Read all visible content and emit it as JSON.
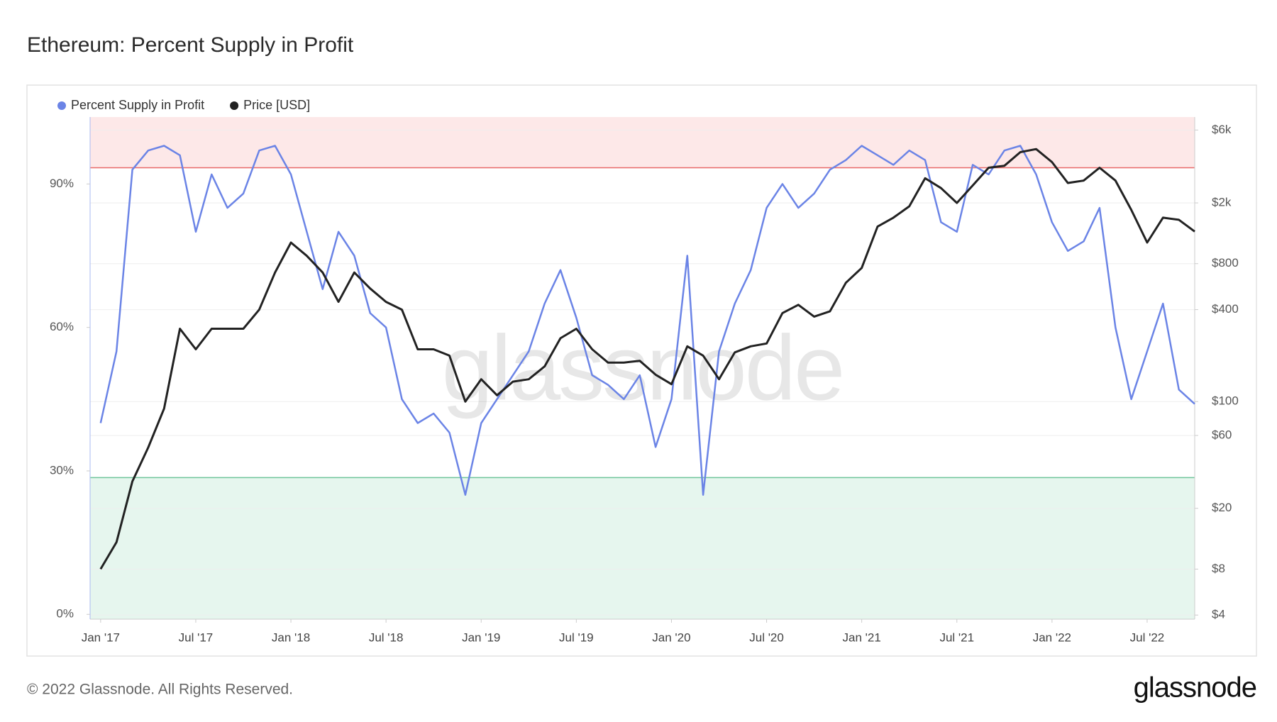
{
  "chart_data": {
    "type": "line",
    "title": "Ethereum: Percent Supply in Profit",
    "watermark": "glassnode",
    "footer": "© 2022 Glassnode. All Rights Reserved.",
    "logo": "glassnode",
    "x": [
      "2017-01",
      "2017-02",
      "2017-03",
      "2017-04",
      "2017-05",
      "2017-06",
      "2017-07",
      "2017-08",
      "2017-09",
      "2017-10",
      "2017-11",
      "2017-12",
      "2018-01",
      "2018-02",
      "2018-03",
      "2018-04",
      "2018-05",
      "2018-06",
      "2018-07",
      "2018-08",
      "2018-09",
      "2018-10",
      "2018-11",
      "2018-12",
      "2019-01",
      "2019-02",
      "2019-03",
      "2019-04",
      "2019-05",
      "2019-06",
      "2019-07",
      "2019-08",
      "2019-09",
      "2019-10",
      "2019-11",
      "2019-12",
      "2020-01",
      "2020-02",
      "2020-03",
      "2020-04",
      "2020-05",
      "2020-06",
      "2020-07",
      "2020-08",
      "2020-09",
      "2020-10",
      "2020-11",
      "2020-12",
      "2021-01",
      "2021-02",
      "2021-03",
      "2021-04",
      "2021-05",
      "2021-06",
      "2021-07",
      "2021-08",
      "2021-09",
      "2021-10",
      "2021-11",
      "2021-12",
      "2022-01",
      "2022-02",
      "2022-03",
      "2022-04",
      "2022-05",
      "2022-06",
      "2022-07",
      "2022-08",
      "2022-09",
      "2022-10"
    ],
    "xlim": [
      "2016-12",
      "2022-10"
    ],
    "xticks": [
      {
        "value": "2017-01",
        "label": "Jan '17"
      },
      {
        "value": "2017-07",
        "label": "Jul '17"
      },
      {
        "value": "2018-01",
        "label": "Jan '18"
      },
      {
        "value": "2018-07",
        "label": "Jul '18"
      },
      {
        "value": "2019-01",
        "label": "Jan '19"
      },
      {
        "value": "2019-07",
        "label": "Jul '19"
      },
      {
        "value": "2020-01",
        "label": "Jan '20"
      },
      {
        "value": "2020-07",
        "label": "Jul '20"
      },
      {
        "value": "2021-01",
        "label": "Jan '21"
      },
      {
        "value": "2021-07",
        "label": "Jul '21"
      },
      {
        "value": "2022-01",
        "label": "Jan '22"
      },
      {
        "value": "2022-07",
        "label": "Jul '22"
      }
    ],
    "ylim": [
      -1,
      104
    ],
    "yticks": [
      {
        "value": 0,
        "label": "0%"
      },
      {
        "value": 30,
        "label": "30%"
      },
      {
        "value": 60,
        "label": "60%"
      },
      {
        "value": 90,
        "label": "90%"
      }
    ],
    "y2lim": [
      3.76,
      7300
    ],
    "y2log": true,
    "y2ticks": [
      {
        "value": 4,
        "label": "$4"
      },
      {
        "value": 8,
        "label": "$8"
      },
      {
        "value": 20,
        "label": "$20"
      },
      {
        "value": 60,
        "label": "$60"
      },
      {
        "value": 100,
        "label": "$100"
      },
      {
        "value": 400,
        "label": "$400"
      },
      {
        "value": 800,
        "label": "$800"
      },
      {
        "value": 2000,
        "label": "$2k"
      },
      {
        "value": 6000,
        "label": "$6k"
      }
    ],
    "grid": true,
    "legend": "top-left",
    "upper_threshold": 93.4,
    "upper_color": "#e86a6a",
    "upper_fill": "#fde8e8",
    "lower_threshold": 28.6,
    "lower_color": "#6fc49a",
    "lower_fill": "#e6f6ee",
    "series": [
      {
        "name": "Percent Supply in Profit",
        "color": "#6b84e6",
        "values": [
          40,
          55,
          93,
          97,
          98,
          96,
          80,
          92,
          85,
          88,
          97,
          98,
          92,
          80,
          68,
          80,
          75,
          63,
          60,
          45,
          40,
          42,
          38,
          25,
          40,
          45,
          50,
          55,
          65,
          72,
          62,
          50,
          48,
          45,
          50,
          35,
          45,
          75,
          25,
          55,
          65,
          72,
          85,
          90,
          85,
          88,
          93,
          95,
          98,
          96,
          94,
          97,
          95,
          82,
          80,
          94,
          92,
          97,
          98,
          92,
          82,
          76,
          78,
          85,
          60,
          45,
          55,
          65,
          47,
          44
        ]
      },
      {
        "name": "Price [USD]",
        "color": "#222222",
        "axis": "y2",
        "values": [
          8,
          12,
          30,
          50,
          90,
          300,
          220,
          300,
          300,
          300,
          400,
          700,
          1100,
          900,
          700,
          450,
          700,
          550,
          450,
          400,
          220,
          220,
          200,
          100,
          140,
          110,
          135,
          140,
          170,
          260,
          300,
          220,
          180,
          180,
          185,
          150,
          130,
          230,
          200,
          140,
          210,
          230,
          240,
          380,
          430,
          360,
          390,
          600,
          750,
          1400,
          1600,
          1900,
          2900,
          2500,
          2000,
          2600,
          3400,
          3500,
          4300,
          4500,
          3700,
          2700,
          2800,
          3400,
          2800,
          1800,
          1100,
          1600,
          1550,
          1300
        ]
      }
    ]
  }
}
